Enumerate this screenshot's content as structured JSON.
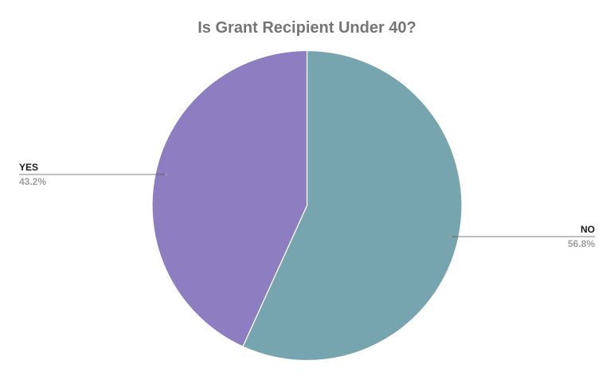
{
  "chart_data": {
    "type": "pie",
    "title": "Is Grant Recipient Under 40?",
    "slices": [
      {
        "label": "NO",
        "value": 56.8,
        "percent_label": "56.8%",
        "color": "#77a5af"
      },
      {
        "label": "YES",
        "value": 43.2,
        "percent_label": "43.2%",
        "color": "#8d7dc1"
      }
    ],
    "start_angle_deg": 0,
    "direction": "clockwise",
    "legend": "none"
  }
}
